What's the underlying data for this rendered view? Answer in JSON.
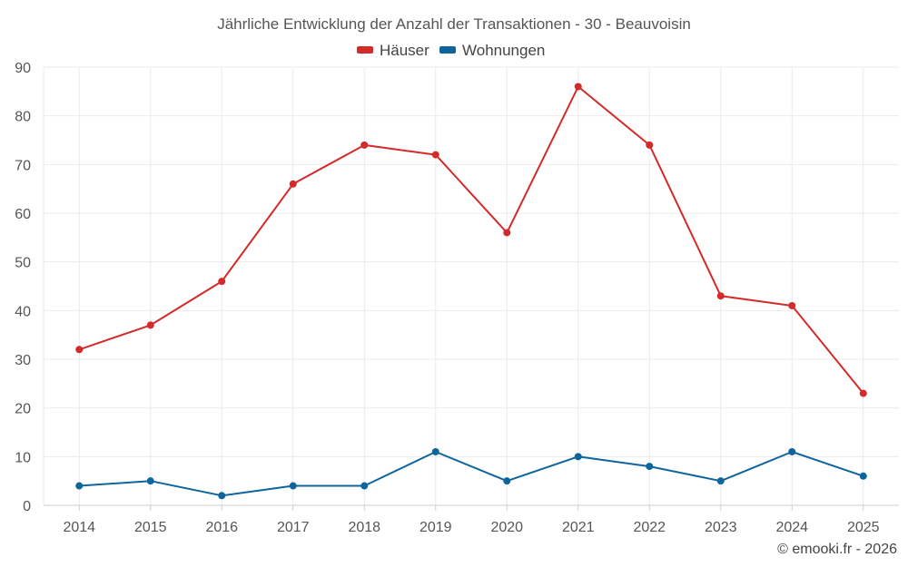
{
  "chart_data": {
    "type": "line",
    "title": "Jährliche Entwicklung der Anzahl der Transaktionen - 30 - Beauvoisin",
    "categories": [
      "2014",
      "2015",
      "2016",
      "2017",
      "2018",
      "2019",
      "2020",
      "2021",
      "2022",
      "2023",
      "2024",
      "2025"
    ],
    "series": [
      {
        "name": "Häuser",
        "color": "#d32a2a",
        "values": [
          32,
          37,
          46,
          66,
          74,
          72,
          56,
          86,
          74,
          43,
          41,
          23
        ]
      },
      {
        "name": "Wohnungen",
        "color": "#0e659c",
        "values": [
          4,
          5,
          2,
          4,
          4,
          11,
          5,
          10,
          8,
          5,
          11,
          6
        ]
      }
    ],
    "ylim": [
      0,
      90
    ],
    "yticks": [
      "0",
      "10",
      "20",
      "30",
      "40",
      "50",
      "60",
      "70",
      "80",
      "90"
    ],
    "xlabel": "",
    "ylabel": "",
    "grid": true,
    "legend": "top-center"
  },
  "credit": "© emooki.fr - 2026"
}
